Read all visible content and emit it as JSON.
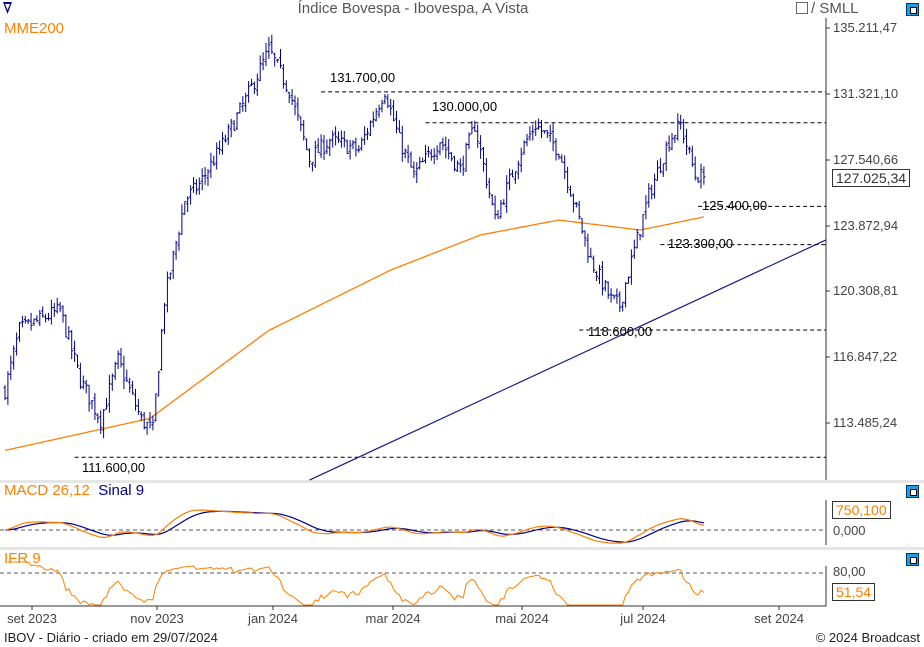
{
  "header": {
    "title": "Índice Bovespa - Ibovespa, A Vista",
    "compare_label": "/ SMLL"
  },
  "legends": {
    "main": "MME200",
    "macd": "MACD 26,12",
    "macd_signal": "Sinal 9",
    "ifr": "IFR 9"
  },
  "footer": {
    "left": "IBOV - Diário - criado em 29/07/2024",
    "right": "© 2024 Broadcast"
  },
  "colors": {
    "price": "#00008b",
    "mme": "#ff7f00",
    "trend": "#1a1a8c",
    "macd": "#ff7f00",
    "signal": "#00008b",
    "ifr": "#ff7f00"
  },
  "chart_data": {
    "type": "ohlc",
    "title": "Índice Bovespa - Ibovespa, A Vista",
    "ylim": [
      110350,
      135700
    ],
    "y_ticks": [
      "135.211,47",
      "131.321,10",
      "127.540,66",
      "123.872,94",
      "120.308,81",
      "116.847,22",
      "113.485,24"
    ],
    "y_tick_values": [
      135211.47,
      131321.1,
      127540.66,
      123872.94,
      120308.81,
      116847.22,
      113485.24
    ],
    "x_ticks": [
      "set 2023",
      "nov 2023",
      "jan 2024",
      "mar 2024",
      "mai 2024",
      "jul 2024",
      "set 2024"
    ],
    "last_price": "127.025,34",
    "sessions": 242,
    "close_path": [
      [
        0,
        115300
      ],
      [
        5,
        118600
      ],
      [
        19,
        119700
      ],
      [
        26,
        115850
      ],
      [
        33,
        113650
      ],
      [
        39,
        116950
      ],
      [
        47,
        113650
      ],
      [
        51,
        113100
      ],
      [
        55,
        120250
      ],
      [
        62,
        125750
      ],
      [
        67,
        126600
      ],
      [
        74,
        128500
      ],
      [
        83,
        131250
      ],
      [
        91,
        134000
      ],
      [
        98,
        131800
      ],
      [
        105,
        128000
      ],
      [
        112,
        129050
      ],
      [
        122,
        128500
      ],
      [
        131,
        131800
      ],
      [
        136,
        129050
      ],
      [
        141,
        127100
      ],
      [
        150,
        129050
      ],
      [
        157,
        127400
      ],
      [
        162,
        129900
      ],
      [
        169,
        124650
      ],
      [
        178,
        128500
      ],
      [
        183,
        129900
      ],
      [
        191,
        128500
      ],
      [
        197,
        125200
      ],
      [
        202,
        122450
      ],
      [
        209,
        120250
      ],
      [
        212,
        119950
      ],
      [
        217,
        123000
      ],
      [
        222,
        126000
      ],
      [
        229,
        129050
      ],
      [
        233,
        129900
      ],
      [
        238,
        127100
      ],
      [
        241,
        127025
      ]
    ],
    "mme200_path": [
      [
        0,
        111980
      ],
      [
        50,
        113740
      ],
      [
        91,
        118580
      ],
      [
        133,
        121900
      ],
      [
        164,
        123830
      ],
      [
        191,
        124650
      ],
      [
        219,
        124100
      ],
      [
        241,
        124820
      ]
    ],
    "trendline": [
      [
        105,
        110350
      ],
      [
        283,
        123550
      ]
    ],
    "levels": [
      {
        "value": 131700,
        "label": "131.700,00",
        "from": 109
      },
      {
        "value": 130000,
        "label": "130.000,00",
        "from": 145
      },
      {
        "value": 125400,
        "label": "125.400,00",
        "from": 239
      },
      {
        "value": 123300,
        "label": "123.300,00",
        "from": 226
      },
      {
        "value": 118600,
        "label": "118.600,00",
        "from": 198
      },
      {
        "value": 111600,
        "label": "111.600,00",
        "from": 24
      }
    ],
    "macd": {
      "value_label": "750,100",
      "zero_label": "0,000"
    },
    "ifr": {
      "value_label": "51,54",
      "ref_label": "80,00",
      "ref_value": 80
    }
  }
}
